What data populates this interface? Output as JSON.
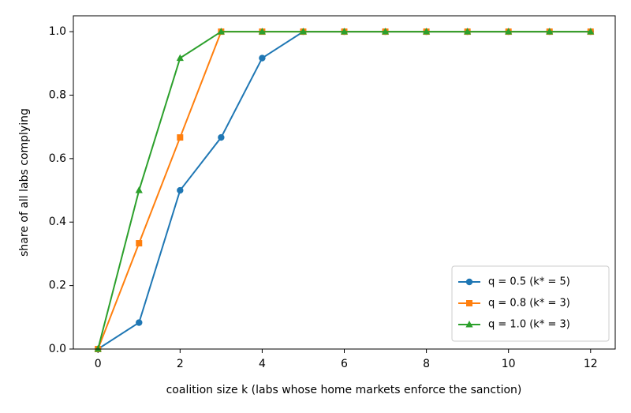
{
  "chart_data": {
    "type": "line",
    "x_label": "coalition size k (labs whose home markets enforce the sanction)",
    "y_label": "share of all labs complying",
    "x": [
      0,
      1,
      2,
      3,
      4,
      5,
      6,
      7,
      8,
      9,
      10,
      11,
      12
    ],
    "series": [
      {
        "name": "q = 0.5 (k* = 5)",
        "color": "#1f77b4",
        "marker": "circle",
        "values": [
          0,
          0.0833,
          0.5,
          0.6667,
          0.9167,
          1,
          1,
          1,
          1,
          1,
          1,
          1,
          1
        ]
      },
      {
        "name": "q = 0.8 (k* = 3)",
        "color": "#ff7f0e",
        "marker": "square",
        "values": [
          0,
          0.3333,
          0.6667,
          1,
          1,
          1,
          1,
          1,
          1,
          1,
          1,
          1,
          1
        ]
      },
      {
        "name": "q = 1.0 (k* = 3)",
        "color": "#2ca02c",
        "marker": "triangle",
        "values": [
          0,
          0.5,
          0.9167,
          1,
          1,
          1,
          1,
          1,
          1,
          1,
          1,
          1,
          1
        ]
      }
    ],
    "xlim": [
      -0.6,
      12.6
    ],
    "xticks": [
      0,
      2,
      4,
      6,
      8,
      10,
      12
    ],
    "ylim": [
      0,
      1.05
    ],
    "yticks": [
      {
        "value": 0,
        "label": "0.0"
      },
      {
        "value": 0.2,
        "label": "0.2"
      },
      {
        "value": 0.4,
        "label": "0.4"
      },
      {
        "value": 0.6,
        "label": "0.6"
      },
      {
        "value": 0.8,
        "label": "0.8"
      },
      {
        "value": 1,
        "label": "1.0"
      }
    ],
    "grid": false,
    "legend": "lower right"
  }
}
